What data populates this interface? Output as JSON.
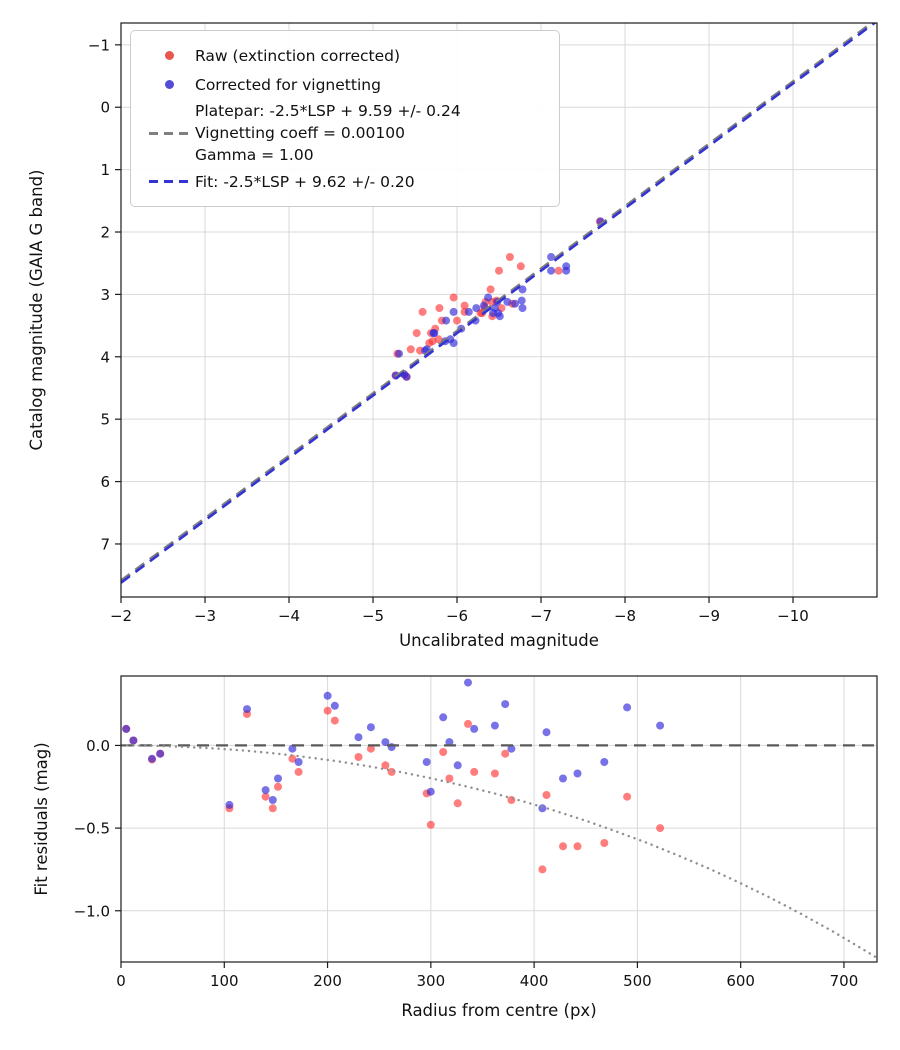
{
  "palette": {
    "raw_scatter": "rgba(255,45,45,0.62)",
    "corrected_scatter": "rgba(48,42,218,0.66)",
    "platepar_line": "#7f7f7f",
    "fit_line": "#3434d2",
    "zero_line": "#5a5a5a",
    "vignetting_curve": "#8f8f8f",
    "grid": "#d9d9d9",
    "spine": "#1a1a1a",
    "background": "#ffffff"
  },
  "chart_data": [
    {
      "type": "scatter",
      "xlabel": "Uncalibrated magnitude",
      "ylabel": "Catalog magnitude (GAIA G band)",
      "x_range": [
        -2,
        -11.0
      ],
      "y_range": [
        -1.35,
        7.85
      ],
      "x_ticks": [
        -2,
        -3,
        -4,
        -5,
        -6,
        -7,
        -8,
        -9,
        -10
      ],
      "x_tick_labels": [
        "−2",
        "−3",
        "−4",
        "−5",
        "−6",
        "−7",
        "−8",
        "−9",
        "−10"
      ],
      "y_ticks": [
        -1,
        0,
        1,
        2,
        3,
        4,
        5,
        6,
        7
      ],
      "y_tick_labels": [
        "−1",
        "0",
        "1",
        "2",
        "3",
        "4",
        "5",
        "6",
        "7"
      ],
      "grid": true,
      "legend_position": "upper left",
      "legend": {
        "raw_label": "Raw (extinction corrected)",
        "corrected_label": "Corrected for vignetting",
        "platepar_line1": "Platepar: -2.5*LSP + 9.59 +/- 0.24",
        "platepar_line2": "Vignetting coeff = 0.00100",
        "platepar_line3": "Gamma = 1.00",
        "fit_label": "Fit: -2.5*LSP + 9.62 +/- 0.20"
      },
      "series": [
        {
          "name": "raw-extinction-corrected",
          "type": "scatter",
          "color": "rgba(255,45,45,0.62)",
          "marker_r": 4,
          "points": [
            [
              -5.4,
              4.32
            ],
            [
              -5.37,
              4.28
            ],
            [
              -7.7,
              1.83
            ],
            [
              -5.27,
              4.3
            ],
            [
              -5.29,
              3.95
            ],
            [
              -6.66,
              3.15
            ],
            [
              -5.69,
              3.62
            ],
            [
              -5.82,
              3.42
            ],
            [
              -6.09,
              3.28
            ],
            [
              -6.42,
              3.12
            ],
            [
              -5.56,
              3.9
            ],
            [
              -7.21,
              2.62
            ],
            [
              -6.42,
              3.35
            ],
            [
              -6.33,
              3.22
            ],
            [
              -6.3,
              3.3
            ],
            [
              -5.78,
              3.72
            ],
            [
              -5.71,
              3.75
            ],
            [
              -5.45,
              3.88
            ],
            [
              -5.52,
              3.62
            ],
            [
              -6.28,
              3.3
            ],
            [
              -6.0,
              3.42
            ],
            [
              -6.09,
              3.18
            ],
            [
              -6.53,
              3.22
            ],
            [
              -6.34,
              3.12
            ],
            [
              -5.67,
              3.78
            ],
            [
              -6.47,
              3.1
            ],
            [
              -5.74,
              3.55
            ],
            [
              -5.59,
              3.28
            ],
            [
              -6.4,
              2.92
            ],
            [
              -5.96,
              3.05
            ],
            [
              -5.79,
              3.22
            ],
            [
              -6.63,
              2.4
            ],
            [
              -6.76,
              2.55
            ],
            [
              -6.5,
              2.62
            ]
          ]
        },
        {
          "name": "corrected-for-vignetting",
          "type": "scatter",
          "color": "rgba(48,42,218,0.66)",
          "marker_r": 4,
          "points": [
            [
              -5.4,
              4.32
            ],
            [
              -5.37,
              4.28
            ],
            [
              -7.71,
              1.83
            ],
            [
              -5.27,
              4.3
            ],
            [
              -5.31,
              3.95
            ],
            [
              -6.69,
              3.15
            ],
            [
              -5.73,
              3.62
            ],
            [
              -5.87,
              3.42
            ],
            [
              -6.14,
              3.28
            ],
            [
              -6.48,
              3.12
            ],
            [
              -5.62,
              3.9
            ],
            [
              -7.3,
              2.62
            ],
            [
              -6.51,
              3.35
            ],
            [
              -6.45,
              3.22
            ],
            [
              -6.43,
              3.3
            ],
            [
              -5.92,
              3.72
            ],
            [
              -5.86,
              3.75
            ],
            [
              -5.64,
              3.88
            ],
            [
              -5.72,
              3.62
            ],
            [
              -6.49,
              3.3
            ],
            [
              -6.22,
              3.42
            ],
            [
              -6.32,
              3.18
            ],
            [
              -6.78,
              3.22
            ],
            [
              -6.6,
              3.12
            ],
            [
              -5.96,
              3.78
            ],
            [
              -6.77,
              3.1
            ],
            [
              -6.05,
              3.55
            ],
            [
              -5.96,
              3.28
            ],
            [
              -6.78,
              2.92
            ],
            [
              -6.37,
              3.05
            ],
            [
              -6.23,
              3.22
            ],
            [
              -7.12,
              2.4
            ],
            [
              -7.3,
              2.55
            ],
            [
              -7.12,
              2.62
            ]
          ]
        },
        {
          "name": "platepar-line",
          "type": "line",
          "color": "#7f7f7f",
          "width": 3,
          "dash": "11,7",
          "points": [
            [
              -2,
              7.59
            ],
            [
              -11.0,
              -1.41
            ]
          ]
        },
        {
          "name": "fit-line",
          "type": "line",
          "color": "#3434d2",
          "width": 2.6,
          "dash": "11,7",
          "points": [
            [
              -2,
              7.62
            ],
            [
              -11.0,
              -1.38
            ]
          ]
        }
      ]
    },
    {
      "type": "scatter",
      "xlabel": "Radius from centre (px)",
      "ylabel": "Fit residuals (mag)",
      "x_range": [
        0,
        732
      ],
      "y_range": [
        0.42,
        -1.31
      ],
      "x_ticks": [
        0,
        100,
        200,
        300,
        400,
        500,
        600,
        700
      ],
      "x_tick_labels": [
        "0",
        "100",
        "200",
        "300",
        "400",
        "500",
        "600",
        "700"
      ],
      "y_ticks": [
        0.0,
        -0.5,
        -1.0
      ],
      "y_tick_labels": [
        "0.0",
        "−0.5",
        "−1.0"
      ],
      "grid": true,
      "series": [
        {
          "name": "raw-residuals",
          "type": "scatter",
          "color": "rgba(255,45,45,0.62)",
          "marker_r": 4,
          "points": [
            [
              5,
              0.1
            ],
            [
              12,
              0.03
            ],
            [
              30,
              -0.085
            ],
            [
              38,
              -0.05
            ],
            [
              105,
              -0.38
            ],
            [
              122,
              0.19
            ],
            [
              140,
              -0.31
            ],
            [
              147,
              -0.38
            ],
            [
              152,
              -0.25
            ],
            [
              166,
              -0.08
            ],
            [
              172,
              -0.16
            ],
            [
              200,
              0.21
            ],
            [
              207,
              0.15
            ],
            [
              230,
              -0.07
            ],
            [
              242,
              -0.02
            ],
            [
              256,
              -0.12
            ],
            [
              262,
              -0.16
            ],
            [
              296,
              -0.29
            ],
            [
              300,
              -0.48
            ],
            [
              312,
              -0.04
            ],
            [
              318,
              -0.2
            ],
            [
              326,
              -0.35
            ],
            [
              336,
              0.13
            ],
            [
              342,
              -0.16
            ],
            [
              362,
              -0.17
            ],
            [
              372,
              -0.05
            ],
            [
              378,
              -0.33
            ],
            [
              408,
              -0.75
            ],
            [
              412,
              -0.3
            ],
            [
              428,
              -0.61
            ],
            [
              442,
              -0.61
            ],
            [
              468,
              -0.59
            ],
            [
              490,
              -0.31
            ],
            [
              522,
              -0.5
            ]
          ]
        },
        {
          "name": "corrected-residuals",
          "type": "scatter",
          "color": "rgba(48,42,218,0.66)",
          "marker_r": 4,
          "points": [
            [
              5,
              0.1
            ],
            [
              12,
              0.03
            ],
            [
              30,
              -0.08
            ],
            [
              38,
              -0.05
            ],
            [
              105,
              -0.36
            ],
            [
              122,
              0.22
            ],
            [
              140,
              -0.27
            ],
            [
              147,
              -0.33
            ],
            [
              152,
              -0.2
            ],
            [
              166,
              -0.02
            ],
            [
              172,
              -0.1
            ],
            [
              200,
              0.3
            ],
            [
              207,
              0.24
            ],
            [
              230,
              0.05
            ],
            [
              242,
              0.11
            ],
            [
              256,
              0.02
            ],
            [
              262,
              -0.01
            ],
            [
              296,
              -0.1
            ],
            [
              300,
              -0.28
            ],
            [
              312,
              0.17
            ],
            [
              318,
              0.02
            ],
            [
              326,
              -0.12
            ],
            [
              336,
              0.38
            ],
            [
              342,
              0.1
            ],
            [
              362,
              0.12
            ],
            [
              372,
              0.25
            ],
            [
              378,
              -0.02
            ],
            [
              408,
              -0.38
            ],
            [
              412,
              0.08
            ],
            [
              428,
              -0.2
            ],
            [
              442,
              -0.17
            ],
            [
              468,
              -0.1
            ],
            [
              490,
              0.23
            ],
            [
              522,
              0.12
            ]
          ]
        },
        {
          "name": "zero-line",
          "type": "line",
          "color": "#5a5a5a",
          "width": 2.2,
          "dash": "12,7",
          "points": [
            [
              0,
              0
            ],
            [
              732,
              0
            ]
          ]
        },
        {
          "name": "vignetting-model-curve",
          "type": "line",
          "color": "#8f8f8f",
          "width": 2.4,
          "dash": "0.1,6",
          "cap": "round",
          "points": [
            [
              0,
              0
            ],
            [
              30,
              -0.002
            ],
            [
              60,
              -0.008
            ],
            [
              90,
              -0.018
            ],
            [
              120,
              -0.031
            ],
            [
              150,
              -0.049
            ],
            [
              180,
              -0.071
            ],
            [
              210,
              -0.096
            ],
            [
              240,
              -0.126
            ],
            [
              270,
              -0.16
            ],
            [
              300,
              -0.198
            ],
            [
              330,
              -0.241
            ],
            [
              360,
              -0.288
            ],
            [
              390,
              -0.339
            ],
            [
              420,
              -0.395
            ],
            [
              450,
              -0.455
            ],
            [
              480,
              -0.521
            ],
            [
              510,
              -0.591
            ],
            [
              540,
              -0.667
            ],
            [
              570,
              -0.747
            ],
            [
              600,
              -0.834
            ],
            [
              630,
              -0.926
            ],
            [
              660,
              -1.024
            ],
            [
              690,
              -1.128
            ],
            [
              720,
              -1.239
            ],
            [
              732,
              -1.285
            ]
          ]
        }
      ]
    }
  ]
}
